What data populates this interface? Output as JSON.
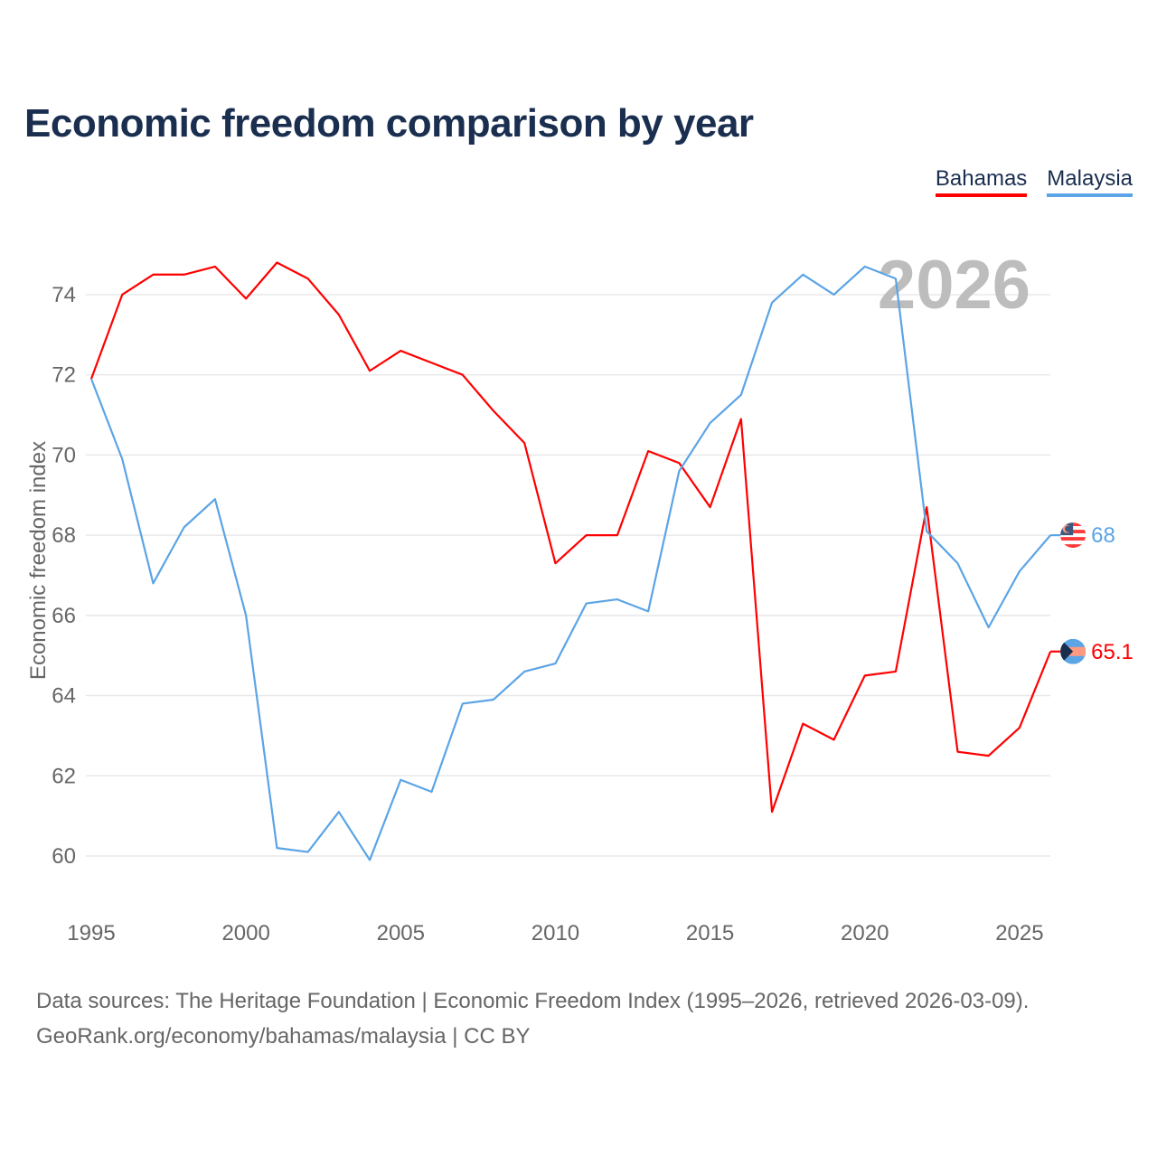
{
  "chart_data": {
    "type": "line",
    "title": "Economic freedom comparison by year",
    "xlabel": "",
    "ylabel": "Economic freedom index",
    "year_watermark": "2026",
    "xlim": [
      1995,
      2026
    ],
    "ylim": [
      59,
      75.5
    ],
    "x_ticks": [
      1995,
      2000,
      2005,
      2010,
      2015,
      2020,
      2025
    ],
    "y_ticks": [
      60,
      62,
      64,
      66,
      68,
      70,
      72,
      74
    ],
    "grid": true,
    "legend_position": "top-right",
    "x": [
      1995,
      1996,
      1997,
      1998,
      1999,
      2000,
      2001,
      2002,
      2003,
      2004,
      2005,
      2006,
      2007,
      2008,
      2009,
      2010,
      2011,
      2012,
      2013,
      2014,
      2015,
      2016,
      2017,
      2018,
      2019,
      2020,
      2021,
      2022,
      2023,
      2024,
      2025,
      2026
    ],
    "series": [
      {
        "name": "Bahamas",
        "color": "#ff0000",
        "end_label": "65.1",
        "flag": "bahamas-flag",
        "values": [
          71.9,
          74.0,
          74.5,
          74.5,
          74.7,
          73.9,
          74.8,
          74.4,
          73.5,
          72.1,
          72.6,
          72.3,
          72.0,
          71.1,
          70.3,
          67.3,
          68.0,
          68.0,
          70.1,
          69.8,
          68.7,
          70.9,
          61.1,
          63.3,
          62.9,
          64.5,
          64.6,
          68.7,
          62.6,
          62.5,
          63.2,
          65.1
        ]
      },
      {
        "name": "Malaysia",
        "color": "#5ba4e6",
        "end_label": "68",
        "flag": "malaysia-flag",
        "values": [
          71.9,
          69.9,
          66.8,
          68.2,
          68.9,
          66.0,
          60.2,
          60.1,
          61.1,
          59.9,
          61.9,
          61.6,
          63.8,
          63.9,
          64.6,
          64.8,
          66.3,
          66.4,
          66.1,
          69.6,
          70.8,
          71.5,
          73.8,
          74.5,
          74.0,
          74.7,
          74.4,
          68.1,
          67.3,
          65.7,
          67.1,
          68.0
        ]
      }
    ]
  },
  "footer": {
    "source_line": "Data sources: The Heritage Foundation | Economic Freedom Index (1995–2026, retrieved 2026-03-09).",
    "credit_line": "GeoRank.org/economy/bahamas/malaysia | CC BY"
  }
}
